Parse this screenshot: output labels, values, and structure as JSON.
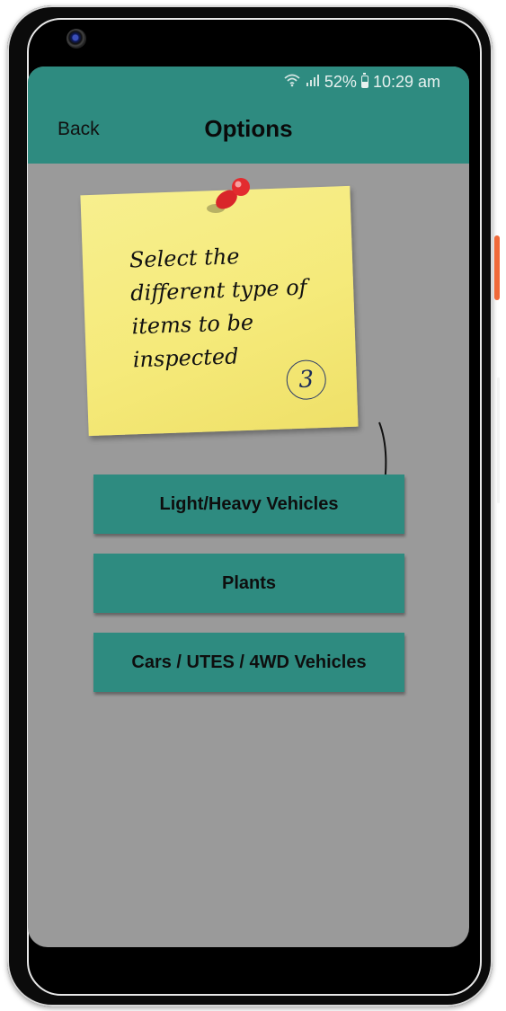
{
  "status_bar": {
    "battery": "52%",
    "time": "10:29 am",
    "wifi_icon": "wifi-icon",
    "signal_icon": "signal-icon",
    "battery_icon": "battery-icon"
  },
  "header": {
    "back_label": "Back",
    "title": "Options"
  },
  "note": {
    "text": "Select the different type of items to be inspected",
    "step": "3"
  },
  "options": [
    {
      "label": "Light/Heavy Vehicles"
    },
    {
      "label": "Plants"
    },
    {
      "label": "Cars / UTES / 4WD Vehicles"
    }
  ],
  "colors": {
    "primary": "#2e8b80",
    "screen_background": "#9a9a9a",
    "note": "#f5ea7a",
    "pin": "#e0262b"
  }
}
